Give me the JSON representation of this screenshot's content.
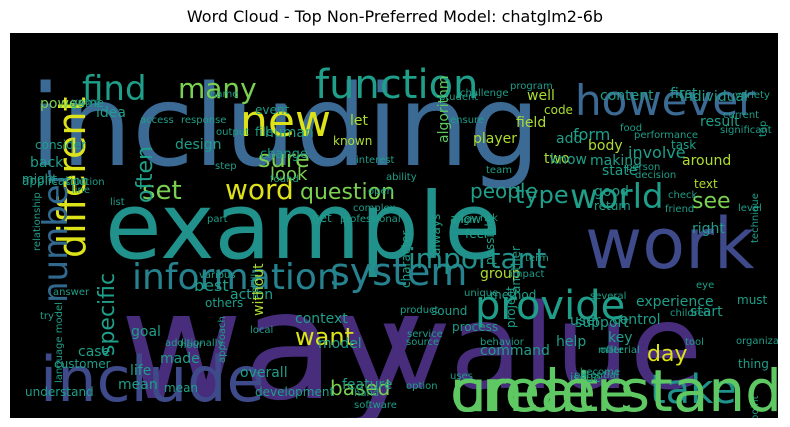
{
  "title": "Word Cloud - Top Non-Preferred Model: chatglm2-6b",
  "words": [
    "including",
    "way",
    "value",
    "example",
    "work",
    "include",
    "create",
    "function",
    "however",
    "new",
    "different",
    "information",
    "provide",
    "system",
    "find",
    "many",
    "world",
    "important",
    "number",
    "set",
    "word",
    "question",
    "people",
    "type",
    "take",
    "day",
    "see",
    "sure",
    "often",
    "want",
    "specific",
    "based",
    "look",
    "human",
    "change",
    "known",
    "let",
    "game",
    "code",
    "field",
    "form",
    "two",
    "add",
    "know",
    "state",
    "making",
    "involve",
    "around",
    "body",
    "result",
    "first",
    "individual",
    "content",
    "well",
    "algorithm",
    "player",
    "event",
    "file",
    "design",
    "idea",
    "application",
    "power",
    "consider",
    "back",
    "might",
    "get",
    "allow",
    "always",
    "character",
    "group",
    "possible",
    "method",
    "user",
    "good",
    "return",
    "text",
    "right",
    "best",
    "action",
    "others",
    "support",
    "control",
    "experience",
    "start",
    "process",
    "project",
    "command",
    "key",
    "case",
    "goal",
    "model",
    "context",
    "feature",
    "made",
    "life",
    "mean",
    "overall",
    "development",
    "customer",
    "understand",
    "task",
    "mean",
    "issue",
    "help",
    "access",
    "response",
    "challenge",
    "name",
    "student",
    "performance",
    "variety",
    "step",
    "found",
    "open",
    "team",
    "line",
    "list",
    "solution",
    "part",
    "service",
    "various",
    "skill",
    "without",
    "sound",
    "another",
    "term",
    "impact",
    "feel",
    "unique",
    "high",
    "eye",
    "must",
    "children",
    "technique",
    "professional",
    "several",
    "product",
    "potential",
    "offer",
    "material",
    "source",
    "local",
    "additionally",
    "language model",
    "relationship",
    "answer",
    "try",
    "youre",
    "hour",
    "program",
    "ensure",
    "ability",
    "complex",
    "output",
    "approach",
    "thing",
    "tool",
    "become",
    "top",
    "significant",
    "current",
    "food",
    "hand",
    "software",
    "option",
    "uses",
    "level",
    "decision",
    "behavior",
    "risk",
    "person",
    "check",
    "friend",
    "interest",
    "point",
    "organization",
    "understanding",
    "topic",
    "create"
  ]
}
